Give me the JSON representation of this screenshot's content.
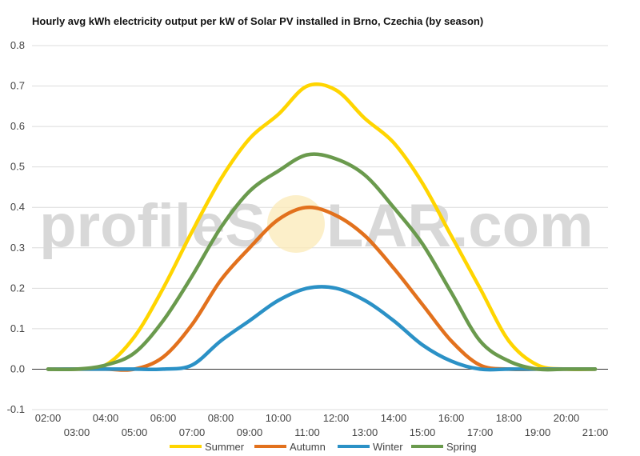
{
  "chart_data": {
    "type": "line",
    "title": "Hourly avg kWh electricity output per kW of Solar PV installed in Brno, Czechia (by season)",
    "xlabel": "",
    "ylabel": "",
    "ylim": [
      -0.1,
      0.8
    ],
    "yticks": [
      "0.8",
      "0.7",
      "0.6",
      "0.5",
      "0.4",
      "0.3",
      "0.2",
      "0.1",
      "0.0",
      "-0.1"
    ],
    "x": [
      "02:00",
      "03:00",
      "04:00",
      "05:00",
      "06:00",
      "07:00",
      "08:00",
      "09:00",
      "10:00",
      "11:00",
      "12:00",
      "13:00",
      "14:00",
      "15:00",
      "16:00",
      "17:00",
      "18:00",
      "19:00",
      "20:00",
      "21:00"
    ],
    "grid": true,
    "legend_position": "bottom",
    "series": [
      {
        "name": "Summer",
        "color": "#ffd500",
        "values": [
          0.0,
          0.0,
          0.01,
          0.08,
          0.2,
          0.34,
          0.47,
          0.57,
          0.63,
          0.7,
          0.69,
          0.62,
          0.56,
          0.46,
          0.33,
          0.2,
          0.07,
          0.01,
          0.0,
          0.0
        ]
      },
      {
        "name": "Autumn",
        "color": "#e2711d",
        "values": [
          0.0,
          0.0,
          0.0,
          0.0,
          0.03,
          0.11,
          0.22,
          0.3,
          0.37,
          0.4,
          0.38,
          0.33,
          0.25,
          0.16,
          0.07,
          0.01,
          0.0,
          0.0,
          0.0,
          0.0
        ]
      },
      {
        "name": "Winter",
        "color": "#2b91c6",
        "values": [
          0.0,
          0.0,
          0.0,
          0.0,
          0.0,
          0.01,
          0.07,
          0.12,
          0.17,
          0.2,
          0.2,
          0.17,
          0.12,
          0.06,
          0.02,
          0.0,
          0.0,
          0.0,
          0.0,
          0.0
        ]
      },
      {
        "name": "Spring",
        "color": "#6a9a4d",
        "values": [
          0.0,
          0.0,
          0.01,
          0.04,
          0.12,
          0.23,
          0.35,
          0.44,
          0.49,
          0.53,
          0.52,
          0.48,
          0.4,
          0.31,
          0.19,
          0.07,
          0.02,
          0.0,
          0.0,
          0.0
        ]
      }
    ]
  },
  "watermark": {
    "left": "profileS",
    "right": "LAR.com"
  }
}
